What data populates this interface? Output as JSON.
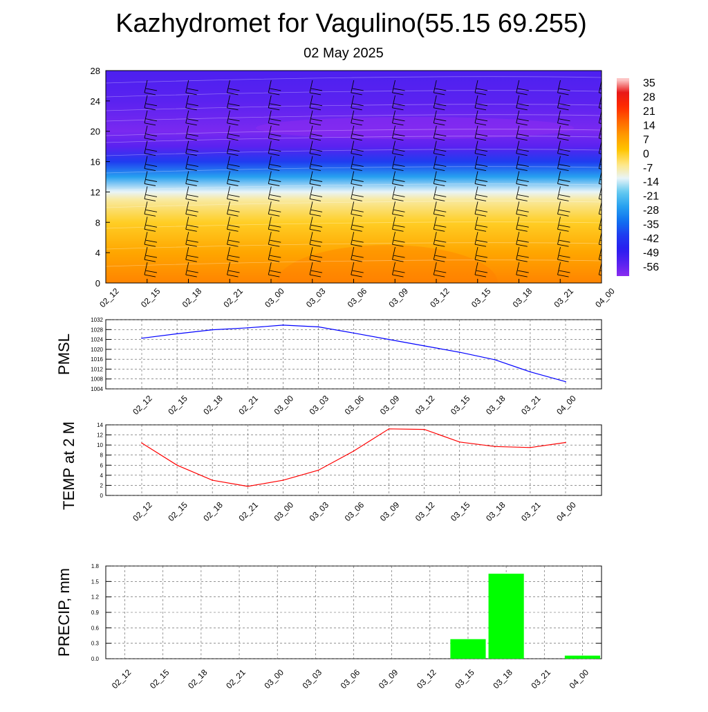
{
  "header": {
    "title": "Kazhydromet for Vagulino(55.15 69.255)",
    "subtitle": "02 May 2025"
  },
  "chart_data": [
    {
      "type": "heatmap",
      "name": "Vertical temperature cross-section with wind barbs",
      "x_ticks": [
        "02_12",
        "02_15",
        "02_18",
        "02_21",
        "03_00",
        "03_03",
        "03_06",
        "03_09",
        "03_12",
        "03_15",
        "03_18",
        "03_21",
        "04_00"
      ],
      "y_ticks": [
        0,
        4,
        8,
        12,
        16,
        20,
        24,
        28
      ],
      "ylim": [
        0,
        28
      ],
      "colorbar_labels": [
        "35",
        "28",
        "21",
        "14",
        "7",
        "0",
        "-7",
        "-14",
        "-21",
        "-28",
        "-35",
        "-42",
        "-49",
        "-56"
      ],
      "temperature_profile_by_height": [
        {
          "y": 0,
          "t": 10
        },
        {
          "y": 4,
          "t": 5
        },
        {
          "y": 8,
          "t": -2
        },
        {
          "y": 11,
          "t": -9
        },
        {
          "y": 12,
          "t": -14
        },
        {
          "y": 14,
          "t": -28
        },
        {
          "y": 16,
          "t": -42
        },
        {
          "y": 18,
          "t": -56
        },
        {
          "y": 20,
          "t": -60
        },
        {
          "y": 24,
          "t": -56
        },
        {
          "y": 28,
          "t": -54
        }
      ],
      "colors": {
        "warm": "#ff6a00",
        "mid": "#ffcc33",
        "cold": "#27a7f0",
        "coldest": "#7b2cf0"
      }
    },
    {
      "type": "line",
      "ylabel": "PMSL",
      "categories": [
        "02_12",
        "02_15",
        "02_18",
        "02_21",
        "03_00",
        "03_03",
        "03_06",
        "03_09",
        "03_12",
        "03_15",
        "03_18",
        "03_21",
        "04_00"
      ],
      "values": [
        1024.5,
        1026.3,
        1027.9,
        1028.7,
        1029.8,
        1029.1,
        1026.6,
        1024.0,
        1021.4,
        1018.8,
        1015.8,
        1010.9,
        1006.9
      ],
      "ylim": [
        1004,
        1032
      ],
      "y_ticks": [
        1004,
        1008,
        1012,
        1016,
        1020,
        1024,
        1028,
        1032
      ],
      "color": "#0000ff"
    },
    {
      "type": "line",
      "ylabel": "TEMP at 2 M",
      "categories": [
        "02_12",
        "02_15",
        "02_18",
        "02_21",
        "03_00",
        "03_03",
        "03_06",
        "03_09",
        "03_12",
        "03_15",
        "03_18",
        "03_21",
        "04_00"
      ],
      "values": [
        10.4,
        6.0,
        3.0,
        1.8,
        3.0,
        5.0,
        8.8,
        13.2,
        13.1,
        10.6,
        9.7,
        9.5,
        10.5
      ],
      "ylim": [
        0,
        14
      ],
      "y_ticks": [
        0,
        2,
        4,
        6,
        8,
        10,
        12,
        14
      ],
      "color": "#ff0000"
    },
    {
      "type": "bar",
      "ylabel": "PRECIP, mm",
      "categories": [
        "02_12",
        "02_15",
        "02_18",
        "02_21",
        "03_00",
        "03_03",
        "03_06",
        "03_09",
        "03_12",
        "03_15",
        "03_18",
        "03_21",
        "04_00"
      ],
      "values": [
        0,
        0,
        0,
        0,
        0,
        0,
        0,
        0,
        0,
        0.38,
        1.65,
        0,
        0.06
      ],
      "ylim": [
        0,
        1.8
      ],
      "y_ticks": [
        "0.0",
        "0.3",
        "0.6",
        "0.9",
        "1.2",
        "1.5",
        "1.8"
      ],
      "color": "#00ff00"
    }
  ]
}
